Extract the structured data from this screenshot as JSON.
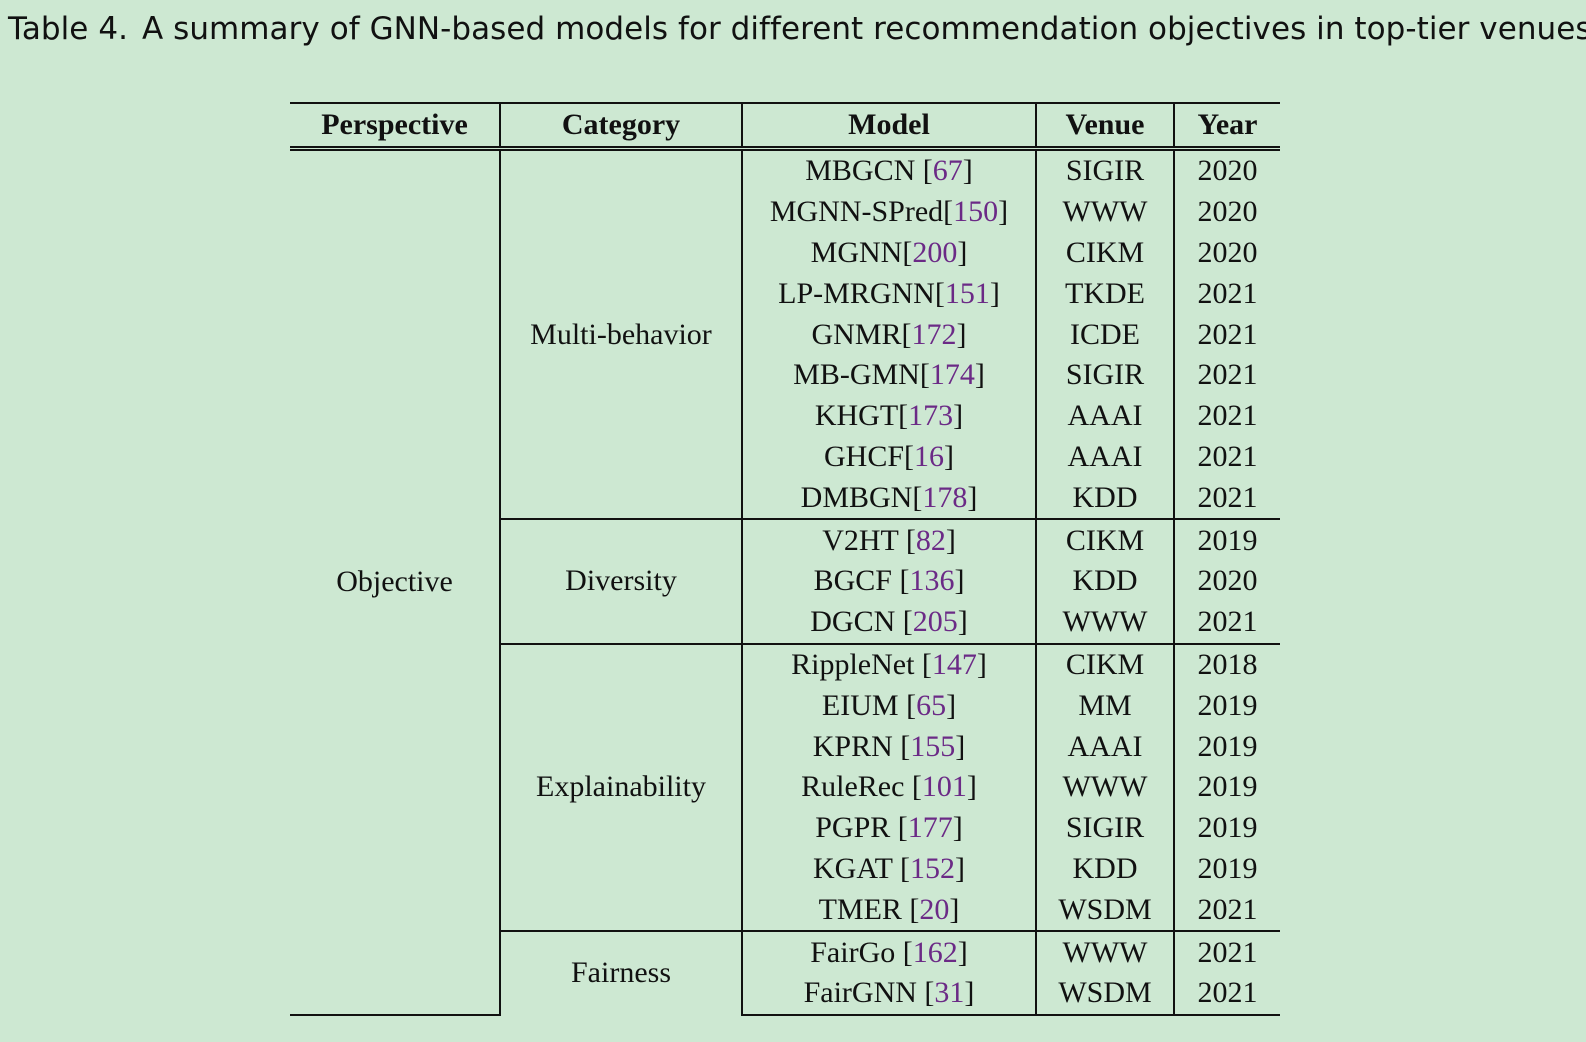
{
  "caption": {
    "label": "Table 4.",
    "text": "A summary of GNN-based models for different recommendation objectives in top-tier venues."
  },
  "table": {
    "headers": [
      "Perspective",
      "Category",
      "Model",
      "Venue",
      "Year"
    ],
    "perspective": "Objective",
    "groups": [
      {
        "category": "Multi-behavior",
        "rows": [
          {
            "model": "MBGCN",
            "sep": " ",
            "ref": "67",
            "venue": "SIGIR",
            "year": "2020"
          },
          {
            "model": "MGNN-SPred",
            "sep": "",
            "ref": "150",
            "venue": "WWW",
            "year": "2020"
          },
          {
            "model": "MGNN",
            "sep": "",
            "ref": "200",
            "venue": "CIKM",
            "year": "2020"
          },
          {
            "model": "LP-MRGNN",
            "sep": "",
            "ref": "151",
            "venue": "TKDE",
            "year": "2021"
          },
          {
            "model": "GNMR",
            "sep": "",
            "ref": "172",
            "venue": "ICDE",
            "year": "2021"
          },
          {
            "model": "MB-GMN",
            "sep": "",
            "ref": "174",
            "venue": "SIGIR",
            "year": "2021"
          },
          {
            "model": "KHGT",
            "sep": "",
            "ref": "173",
            "venue": "AAAI",
            "year": "2021"
          },
          {
            "model": "GHCF",
            "sep": "",
            "ref": "16",
            "venue": "AAAI",
            "year": "2021"
          },
          {
            "model": "DMBGN",
            "sep": "",
            "ref": "178",
            "venue": "KDD",
            "year": "2021"
          }
        ]
      },
      {
        "category": "Diversity",
        "rows": [
          {
            "model": "V2HT",
            "sep": " ",
            "ref": "82",
            "venue": "CIKM",
            "year": "2019"
          },
          {
            "model": "BGCF",
            "sep": " ",
            "ref": "136",
            "venue": "KDD",
            "year": "2020"
          },
          {
            "model": "DGCN",
            "sep": " ",
            "ref": "205",
            "venue": "WWW",
            "year": "2021"
          }
        ]
      },
      {
        "category": "Explainability",
        "rows": [
          {
            "model": "RippleNet",
            "sep": " ",
            "ref": "147",
            "venue": "CIKM",
            "year": "2018"
          },
          {
            "model": "EIUM",
            "sep": " ",
            "ref": "65",
            "venue": "MM",
            "year": "2019"
          },
          {
            "model": "KPRN",
            "sep": " ",
            "ref": "155",
            "venue": "AAAI",
            "year": "2019"
          },
          {
            "model": "RuleRec",
            "sep": " ",
            "ref": "101",
            "venue": "WWW",
            "year": "2019"
          },
          {
            "model": "PGPR",
            "sep": " ",
            "ref": "177",
            "venue": "SIGIR",
            "year": "2019"
          },
          {
            "model": "KGAT",
            "sep": " ",
            "ref": "152",
            "venue": "KDD",
            "year": "2019"
          },
          {
            "model": "TMER",
            "sep": " ",
            "ref": "20",
            "venue": "WSDM",
            "year": "2021"
          }
        ]
      },
      {
        "category": "Fairness",
        "rows": [
          {
            "model": "FairGo",
            "sep": " ",
            "ref": "162",
            "venue": "WWW",
            "year": "2021"
          },
          {
            "model": "FairGNN",
            "sep": " ",
            "ref": "31",
            "venue": "WSDM",
            "year": "2021"
          }
        ]
      }
    ]
  }
}
